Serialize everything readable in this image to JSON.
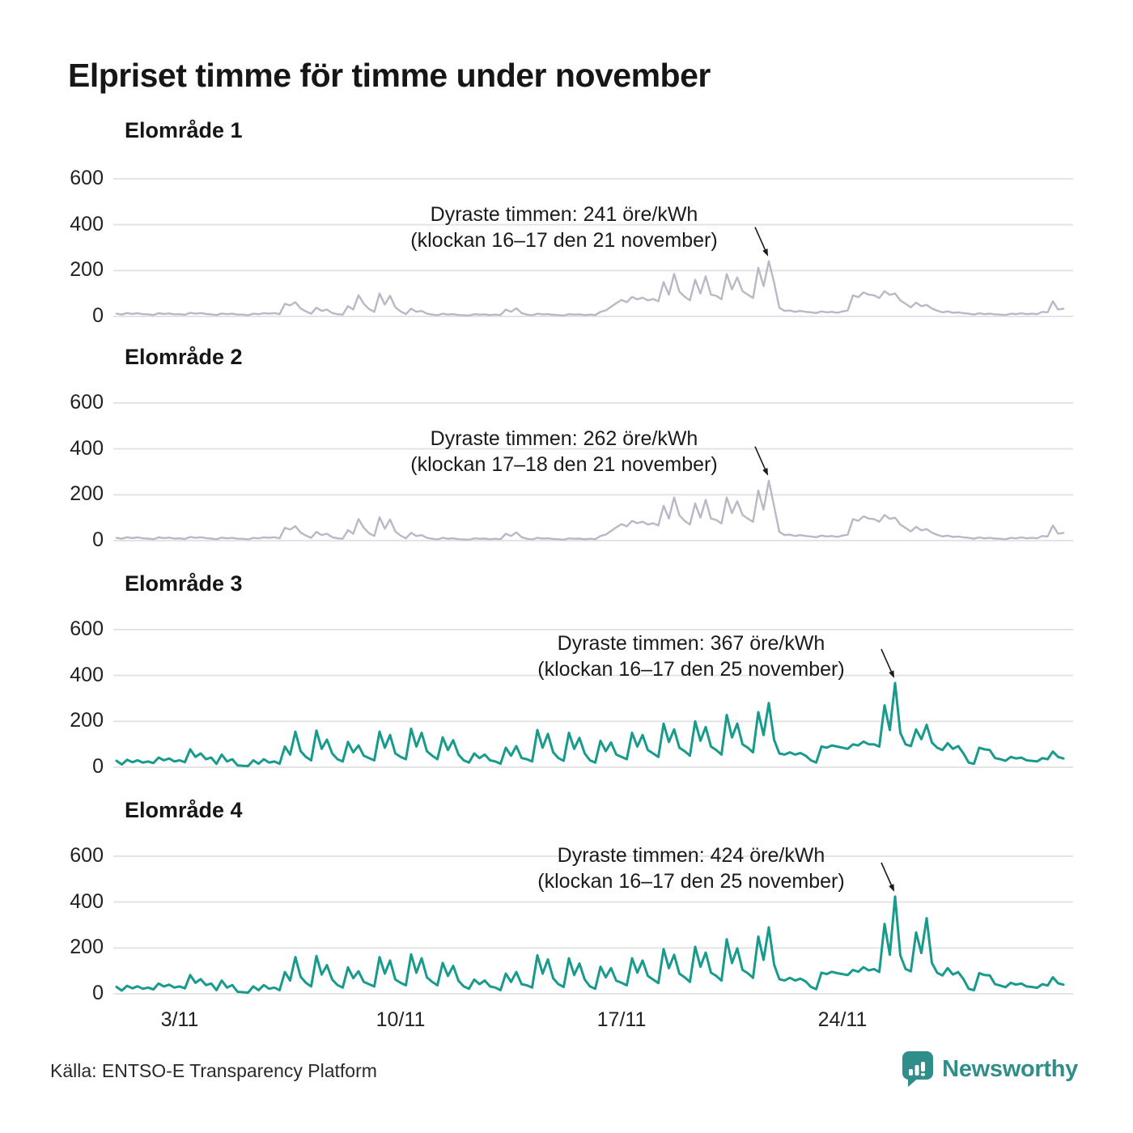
{
  "title": "Elpriset timme för timme under november",
  "source": "Källa: ENTSO-E Transparency Platform",
  "brand": {
    "name": "Newsworthy",
    "color": "#2f8e89"
  },
  "axis": {
    "y_ticks": [
      0,
      200,
      400,
      600
    ],
    "y_max": 600,
    "x_ticks": [
      "3/11",
      "10/11",
      "17/11",
      "24/11"
    ],
    "x_tick_days": [
      3,
      10,
      17,
      24
    ],
    "grid_color": "#e4e4e8",
    "label_color": "#222222"
  },
  "chart_data": [
    {
      "type": "line",
      "name": "Elområde 1",
      "unit": "öre/kWh",
      "color": "#b8b8c6",
      "points_per_day": 6,
      "start_day": 1,
      "annotation": {
        "line1": "Dyraste timmen: 241 öre/kWh",
        "line2": "(klockan 16–17 den 21 november)",
        "max_value": 241
      },
      "values": [
        12,
        8,
        15,
        11,
        14,
        10,
        9,
        6,
        14,
        11,
        13,
        9,
        10,
        7,
        16,
        12,
        15,
        11,
        9,
        6,
        13,
        10,
        12,
        8,
        8,
        5,
        12,
        10,
        14,
        12,
        15,
        10,
        55,
        48,
        62,
        35,
        22,
        12,
        38,
        24,
        30,
        15,
        10,
        8,
        45,
        30,
        92,
        55,
        32,
        20,
        100,
        52,
        90,
        40,
        22,
        10,
        34,
        20,
        24,
        12,
        8,
        5,
        12,
        8,
        10,
        6,
        5,
        4,
        10,
        8,
        9,
        6,
        8,
        6,
        30,
        20,
        36,
        15,
        8,
        5,
        12,
        9,
        10,
        7,
        6,
        4,
        10,
        8,
        9,
        6,
        8,
        6,
        20,
        26,
        42,
        58,
        72,
        62,
        85,
        75,
        82,
        70,
        76,
        66,
        150,
        95,
        185,
        108,
        86,
        70,
        160,
        100,
        175,
        95,
        90,
        75,
        185,
        118,
        170,
        110,
        95,
        80,
        212,
        132,
        241,
        148,
        38,
        24,
        26,
        20,
        24,
        20,
        18,
        15,
        22,
        18,
        20,
        16,
        22,
        26,
        92,
        84,
        105,
        95,
        92,
        80,
        110,
        94,
        100,
        70,
        55,
        40,
        60,
        45,
        50,
        35,
        25,
        18,
        22,
        16,
        18,
        14,
        12,
        8,
        14,
        10,
        12,
        9,
        8,
        6,
        12,
        10,
        14,
        10,
        12,
        10,
        20,
        18,
        66,
        30,
        34
      ]
    },
    {
      "type": "line",
      "name": "Elområde 2",
      "unit": "öre/kWh",
      "color": "#b8b8c6",
      "points_per_day": 6,
      "start_day": 1,
      "annotation": {
        "line1": "Dyraste timmen: 262 öre/kWh",
        "line2": "(klockan 17–18 den 21 november)",
        "max_value": 262
      },
      "values": [
        12,
        8,
        15,
        11,
        14,
        10,
        9,
        6,
        14,
        11,
        13,
        9,
        10,
        7,
        16,
        12,
        15,
        11,
        9,
        6,
        13,
        10,
        12,
        8,
        8,
        5,
        12,
        10,
        14,
        12,
        15,
        10,
        56,
        48,
        63,
        35,
        22,
        12,
        38,
        24,
        30,
        15,
        10,
        8,
        46,
        30,
        94,
        56,
        32,
        20,
        102,
        52,
        92,
        40,
        22,
        10,
        34,
        20,
        24,
        12,
        8,
        5,
        12,
        8,
        10,
        6,
        5,
        4,
        10,
        8,
        9,
        6,
        8,
        6,
        30,
        20,
        36,
        15,
        8,
        5,
        12,
        9,
        10,
        7,
        6,
        4,
        10,
        8,
        9,
        6,
        8,
        6,
        20,
        26,
        42,
        58,
        72,
        62,
        86,
        76,
        83,
        70,
        76,
        66,
        152,
        96,
        188,
        110,
        86,
        70,
        162,
        100,
        178,
        96,
        90,
        75,
        188,
        120,
        172,
        112,
        96,
        82,
        218,
        135,
        262,
        150,
        38,
        24,
        26,
        20,
        24,
        20,
        18,
        15,
        22,
        18,
        20,
        16,
        22,
        26,
        94,
        86,
        106,
        96,
        94,
        82,
        112,
        95,
        100,
        70,
        55,
        40,
        60,
        45,
        50,
        35,
        25,
        18,
        22,
        16,
        18,
        14,
        12,
        8,
        14,
        10,
        12,
        9,
        8,
        6,
        12,
        10,
        14,
        10,
        12,
        10,
        20,
        18,
        66,
        30,
        34
      ]
    },
    {
      "type": "line",
      "name": "Elområde 3",
      "unit": "öre/kWh",
      "color": "#189a8c",
      "points_per_day": 6,
      "start_day": 1,
      "annotation": {
        "line1": "Dyraste timmen: 367 öre/kWh",
        "line2": "(klockan 16–17 den 25 november)",
        "max_value": 367
      },
      "values": [
        28,
        12,
        32,
        22,
        30,
        20,
        25,
        18,
        42,
        30,
        38,
        25,
        30,
        22,
        78,
        45,
        60,
        35,
        42,
        15,
        55,
        25,
        35,
        8,
        6,
        5,
        30,
        15,
        35,
        20,
        25,
        15,
        90,
        55,
        155,
        70,
        45,
        30,
        160,
        80,
        120,
        60,
        35,
        25,
        110,
        65,
        95,
        50,
        40,
        30,
        155,
        85,
        140,
        60,
        45,
        35,
        168,
        90,
        150,
        70,
        50,
        35,
        130,
        75,
        118,
        55,
        30,
        20,
        60,
        40,
        55,
        30,
        25,
        15,
        85,
        50,
        92,
        40,
        35,
        25,
        162,
        85,
        145,
        65,
        40,
        28,
        150,
        80,
        128,
        60,
        30,
        20,
        115,
        70,
        108,
        55,
        45,
        35,
        150,
        90,
        140,
        75,
        60,
        45,
        190,
        110,
        165,
        85,
        70,
        50,
        200,
        115,
        175,
        90,
        75,
        55,
        228,
        130,
        190,
        100,
        85,
        65,
        240,
        140,
        280,
        120,
        60,
        55,
        65,
        55,
        62,
        50,
        30,
        20,
        90,
        85,
        95,
        90,
        85,
        80,
        100,
        95,
        112,
        100,
        100,
        90,
        270,
        162,
        367,
        150,
        100,
        92,
        165,
        122,
        185,
        108,
        85,
        75,
        105,
        80,
        92,
        60,
        20,
        15,
        85,
        78,
        75,
        40,
        35,
        28,
        45,
        38,
        42,
        30,
        28,
        25,
        40,
        35,
        68,
        45,
        38
      ]
    },
    {
      "type": "line",
      "name": "Elområde 4",
      "unit": "öre/kWh",
      "color": "#189a8c",
      "points_per_day": 6,
      "start_day": 1,
      "annotation": {
        "line1": "Dyraste timmen: 424 öre/kWh",
        "line2": "(klockan 16–17 den 25 november)",
        "max_value": 424
      },
      "values": [
        30,
        14,
        35,
        24,
        33,
        22,
        27,
        19,
        45,
        32,
        40,
        27,
        32,
        24,
        82,
        48,
        64,
        38,
        45,
        16,
        58,
        27,
        38,
        9,
        7,
        5,
        32,
        16,
        38,
        22,
        27,
        16,
        95,
        58,
        160,
        74,
        48,
        32,
        165,
        84,
        125,
        62,
        38,
        27,
        115,
        68,
        98,
        52,
        42,
        32,
        160,
        88,
        145,
        62,
        48,
        37,
        172,
        92,
        155,
        72,
        52,
        37,
        135,
        78,
        122,
        57,
        32,
        22,
        62,
        42,
        58,
        32,
        27,
        16,
        88,
        52,
        95,
        42,
        37,
        27,
        168,
        88,
        150,
        68,
        42,
        30,
        155,
        82,
        132,
        62,
        32,
        22,
        118,
        72,
        112,
        57,
        48,
        37,
        155,
        92,
        145,
        78,
        62,
        47,
        195,
        112,
        170,
        88,
        72,
        52,
        205,
        118,
        180,
        92,
        78,
        58,
        238,
        134,
        198,
        104,
        90,
        70,
        250,
        148,
        290,
        128,
        64,
        58,
        70,
        58,
        66,
        54,
        30,
        20,
        92,
        86,
        96,
        90,
        86,
        82,
        104,
        96,
        116,
        102,
        108,
        95,
        305,
        170,
        424,
        168,
        108,
        98,
        268,
        178,
        330,
        135,
        92,
        80,
        112,
        84,
        95,
        64,
        22,
        16,
        90,
        82,
        80,
        42,
        36,
        29,
        48,
        40,
        45,
        32,
        30,
        26,
        42,
        36,
        72,
        46,
        40
      ]
    }
  ]
}
